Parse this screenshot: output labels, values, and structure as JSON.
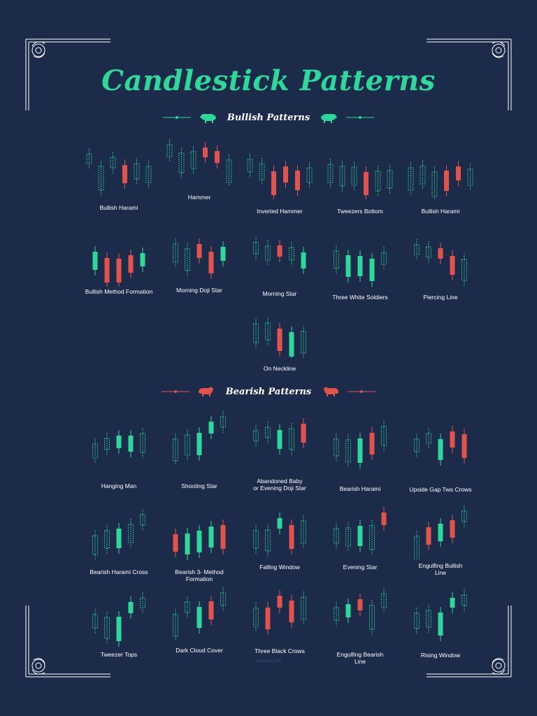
{
  "title": "Candlestick Patterns",
  "colors": {
    "background": "#1d2b4a",
    "bullish": "#2fd79b",
    "bearish": "#e2534e",
    "ghost": "#2fd79b",
    "frame": "#ffffff"
  },
  "sections": {
    "bullish": {
      "label": "Bullish Patterns",
      "icon": "bull-icon",
      "patterns": [
        {
          "label": "Bullish Harami",
          "candles": "gggrgg"
        },
        {
          "label": "Hammer",
          "candles": "gggrrg"
        },
        {
          "label": "Inverted Hammer",
          "candles": "ggrrrg"
        },
        {
          "label": "Tweezers Bottom",
          "candles": "gggrgg"
        },
        {
          "label": "Bullish Harami",
          "candles": "gggrrg"
        },
        {
          "label": "Bullish Method Formation",
          "candles": "GrrrG"
        },
        {
          "label": "Morning Doji Star",
          "candles": "ggrrG"
        },
        {
          "label": "Morning Star",
          "candles": "ggrgG"
        },
        {
          "label": "Three White Soldiers",
          "candles": "gGGGg"
        },
        {
          "label": "Piercing Line",
          "candles": "ggrrg"
        },
        {
          "label": "On Neckline",
          "candles": "ggrGg"
        }
      ]
    },
    "bearish": {
      "label": "Bearish Patterns",
      "icon": "bear-icon",
      "patterns": [
        {
          "label": "Hanging Man",
          "candles": "ggGGg"
        },
        {
          "label": "Shooting Star",
          "candles": "ggGGg"
        },
        {
          "label": "Abandoned Baby\nor Evening Doji Star",
          "candles": "ggGgR"
        },
        {
          "label": "Bearish Harami",
          "candles": "ggGRg"
        },
        {
          "label": "Upside Gap Two Crows",
          "candles": "ggGRR"
        },
        {
          "label": "Bearish Harami Cross",
          "candles": "ggGgg"
        },
        {
          "label": "Bearish 3- Method\nFormation",
          "candles": "RGGGR"
        },
        {
          "label": "Falling Window",
          "candles": "ggGRg"
        },
        {
          "label": "Evening Star",
          "candles": "ggGgR"
        },
        {
          "label": "Engulfing Bullish\nLine",
          "candles": "gRGRg"
        },
        {
          "label": "Tweezer Tops",
          "candles": "ggGGg"
        },
        {
          "label": "Dark Cloud Cover",
          "candles": "ggGRg"
        },
        {
          "label": "Three Black Crows",
          "candles": "gRRRg"
        },
        {
          "label": "Engulfing Bearish\nLine",
          "candles": "gGRgg"
        },
        {
          "label": "Rising Window",
          "candles": "ggGGg"
        }
      ]
    }
  },
  "footer": "Qwotster.com"
}
